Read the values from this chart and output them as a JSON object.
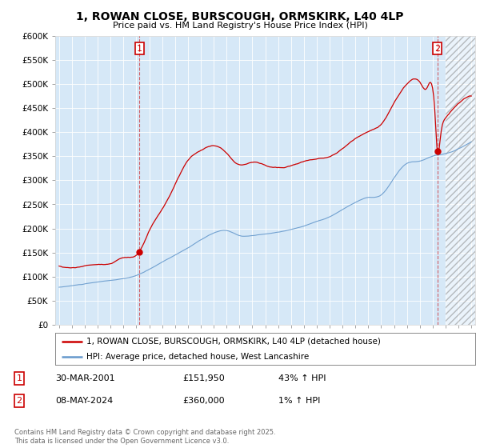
{
  "title_line1": "1, ROWAN CLOSE, BURSCOUGH, ORMSKIRK, L40 4LP",
  "title_line2": "Price paid vs. HM Land Registry's House Price Index (HPI)",
  "ylim": [
    0,
    600000
  ],
  "yticks": [
    0,
    50000,
    100000,
    150000,
    200000,
    250000,
    300000,
    350000,
    400000,
    450000,
    500000,
    550000,
    600000
  ],
  "ytick_labels": [
    "£0",
    "£50K",
    "£100K",
    "£150K",
    "£200K",
    "£250K",
    "£300K",
    "£350K",
    "£400K",
    "£450K",
    "£500K",
    "£550K",
    "£600K"
  ],
  "plot_bg_color": "#d6e8f7",
  "fig_bg_color": "#ffffff",
  "legend_label_red": "1, ROWAN CLOSE, BURSCOUGH, ORMSKIRK, L40 4LP (detached house)",
  "legend_label_blue": "HPI: Average price, detached house, West Lancashire",
  "transaction1_date": "30-MAR-2001",
  "transaction1_price": "£151,950",
  "transaction1_hpi": "43% ↑ HPI",
  "transaction2_date": "08-MAY-2024",
  "transaction2_price": "£360,000",
  "transaction2_hpi": "1% ↑ HPI",
  "footnote": "Contains HM Land Registry data © Crown copyright and database right 2025.\nThis data is licensed under the Open Government Licence v3.0.",
  "red_color": "#cc0000",
  "blue_color": "#6699cc",
  "marker1_x": 2001.25,
  "marker1_y": 151950,
  "marker2_x": 2024.36,
  "marker2_y": 360000,
  "dashed_line1_x": 2001.25,
  "dashed_line2_x": 2024.36,
  "xlim_left": 1994.7,
  "xlim_right": 2027.3,
  "hatch_start_x": 2025.0
}
